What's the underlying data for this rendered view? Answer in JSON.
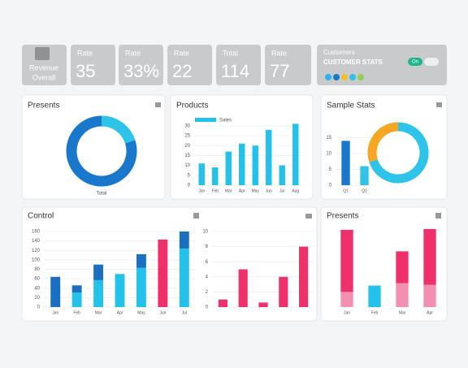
{
  "kpis": [
    {
      "label": "Revenue",
      "value": "Overall"
    },
    {
      "label": "Rate",
      "value": "35"
    },
    {
      "label": "Rate",
      "value": "33%"
    },
    {
      "label": "Rate",
      "value": "22"
    },
    {
      "label": "Total",
      "value": "114"
    },
    {
      "label": "Rate",
      "value": "77"
    }
  ],
  "customers": {
    "title": "Customers",
    "subtitle": "CUSTOMER STATS",
    "button": "On"
  },
  "chart_data": [
    {
      "type": "pie",
      "title": "Presents",
      "caption": "Total",
      "values": [
        20,
        80
      ],
      "colors": [
        "#2ec4ea",
        "#1a78cc"
      ]
    },
    {
      "type": "bar",
      "title": "Products",
      "categories": [
        "Jan",
        "Feb",
        "Mar",
        "Apr",
        "May",
        "Jun",
        "Jul",
        "Aug"
      ],
      "series": [
        {
          "name": "Sales",
          "color": "#22c2ea",
          "values": [
            11,
            9,
            17,
            21,
            20,
            28,
            10,
            31
          ]
        }
      ],
      "ylim": [
        0,
        32
      ],
      "yticks": [
        0,
        5,
        10,
        15,
        20,
        25,
        30
      ],
      "legend": "top-left"
    },
    {
      "type": "bar",
      "title": "Sample Stats",
      "categories": [
        "Q1",
        "Q2"
      ],
      "values": [
        14,
        6
      ],
      "colors": [
        "#1a78cc",
        "#2ec4ea"
      ],
      "ylim": [
        0,
        20
      ],
      "yticks": [
        0,
        5,
        10,
        15
      ]
    },
    {
      "type": "pie",
      "values": [
        70,
        30
      ],
      "colors": [
        "#2ec4ea",
        "#f5a623"
      ]
    },
    {
      "type": "bar",
      "title": "Control",
      "stacked": true,
      "categories": [
        "Jan",
        "Feb",
        "Mar",
        "Apr",
        "May",
        "Jun",
        "Jul"
      ],
      "series": [
        {
          "color": "#22c2ea",
          "values": [
            0,
            31,
            57,
            70,
            83,
            0,
            124
          ]
        },
        {
          "color": "#1a6fc0",
          "values": [
            64,
            15,
            33,
            0,
            29,
            0,
            36
          ]
        },
        {
          "color": "#f0306a",
          "values": [
            0,
            0,
            0,
            0,
            0,
            143,
            0
          ]
        }
      ],
      "ylim": [
        0,
        160
      ],
      "yticks": [
        0,
        20,
        40,
        60,
        80,
        100,
        120,
        140,
        160
      ]
    },
    {
      "type": "bar",
      "values": [
        1,
        5,
        0.6,
        4,
        8
      ],
      "color": "#f0306a",
      "ylim": [
        0,
        10
      ],
      "yticks": [
        0,
        2,
        4,
        6,
        8,
        10
      ]
    },
    {
      "type": "bar",
      "title": "Presents",
      "stacked": true,
      "categories": [
        "Jan",
        "Feb",
        "Mar",
        "Apr"
      ],
      "series": [
        {
          "color": "#f48fb0",
          "values": [
            19,
            0,
            30,
            28
          ]
        },
        {
          "color": "#f0306a",
          "values": [
            78,
            0,
            40,
            70
          ]
        },
        {
          "color": "#22c2ea",
          "values": [
            0,
            27,
            0,
            0
          ]
        }
      ],
      "ylim": [
        0,
        100
      ]
    }
  ]
}
